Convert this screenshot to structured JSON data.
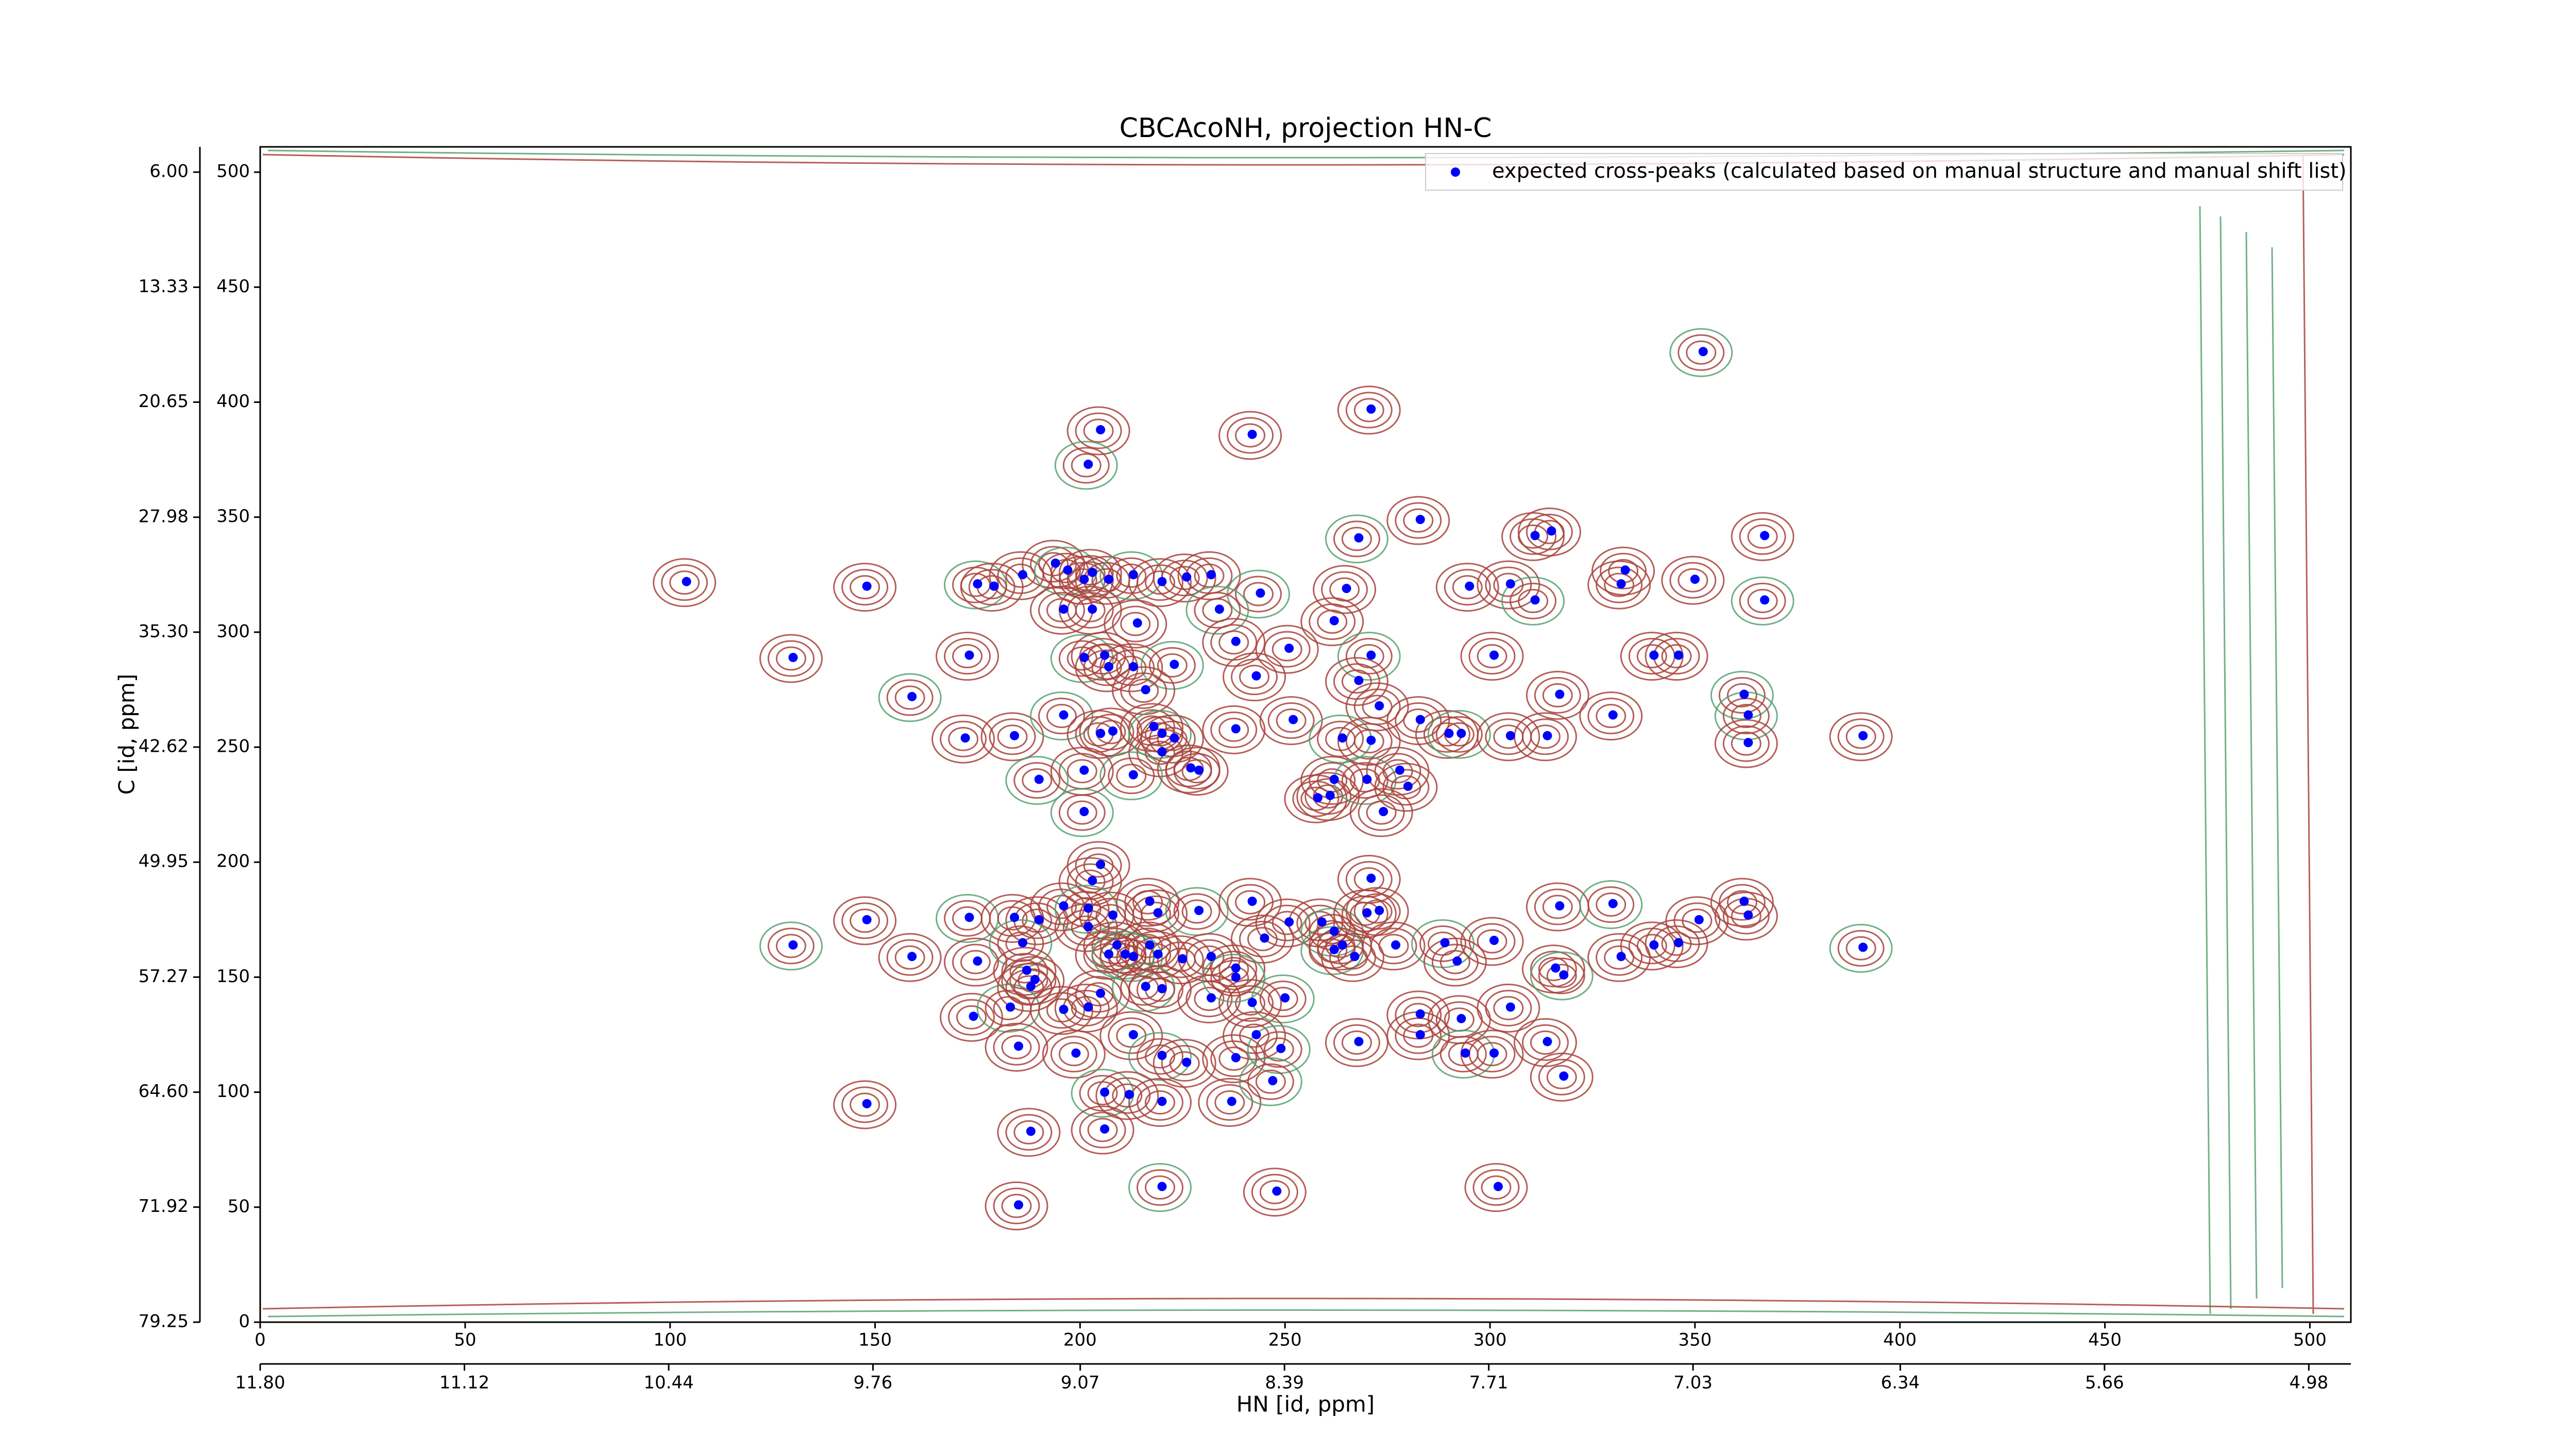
{
  "chart_data": {
    "type": "scatter",
    "title": "CBCAcoNH, projection HN-C",
    "xlabel": "HN [id, ppm]",
    "ylabel": "C [id, ppm]",
    "xlim": [
      0,
      510
    ],
    "ylim": [
      0,
      511
    ],
    "xticks": [
      0,
      50,
      100,
      150,
      200,
      250,
      300,
      350,
      400,
      450,
      500
    ],
    "yticks": [
      0,
      50,
      100,
      150,
      200,
      250,
      300,
      350,
      400,
      450,
      500
    ],
    "x2lim": [
      11.8,
      4.84
    ],
    "x2ticks": [
      {
        "value": 11.8,
        "label": "11.80"
      },
      {
        "value": 11.12,
        "label": "11.12"
      },
      {
        "value": 10.44,
        "label": "10.44"
      },
      {
        "value": 9.76,
        "label": "9.76"
      },
      {
        "value": 9.07,
        "label": "9.07"
      },
      {
        "value": 8.39,
        "label": "8.39"
      },
      {
        "value": 7.71,
        "label": "7.71"
      },
      {
        "value": 7.03,
        "label": "7.03"
      },
      {
        "value": 6.34,
        "label": "6.34"
      },
      {
        "value": 5.66,
        "label": "5.66"
      },
      {
        "value": 4.98,
        "label": "4.98"
      }
    ],
    "y2lim": [
      79.25,
      4.39
    ],
    "y2ticks": [
      {
        "value": 79.25,
        "label": "79.25"
      },
      {
        "value": 71.92,
        "label": "71.92"
      },
      {
        "value": 64.6,
        "label": "64.60"
      },
      {
        "value": 57.27,
        "label": "57.27"
      },
      {
        "value": 49.95,
        "label": "49.95"
      },
      {
        "value": 42.62,
        "label": "42.62"
      },
      {
        "value": 35.3,
        "label": "35.30"
      },
      {
        "value": 27.98,
        "label": "27.98"
      },
      {
        "value": 20.65,
        "label": "20.65"
      },
      {
        "value": 13.33,
        "label": "13.33"
      },
      {
        "value": 6.0,
        "label": "6.00"
      }
    ],
    "legend": "upper right",
    "series": [
      {
        "name": "expected cross-peaks (calculated based on manual structure and manual shift list)",
        "color": "#0000ff",
        "x": [
          352,
          271,
          205,
          242,
          202,
          283,
          315,
          311,
          268,
          367,
          104,
          148,
          175,
          179,
          186,
          194,
          197,
          201,
          203,
          207,
          213,
          220,
          226,
          232,
          244,
          265,
          295,
          305,
          311,
          333,
          332,
          350,
          367,
          196,
          203,
          214,
          234,
          262,
          130,
          173,
          201,
          206,
          207,
          213,
          223,
          238,
          251,
          243,
          271,
          301,
          340,
          346,
          159,
          268,
          273,
          317,
          362,
          216,
          172,
          184,
          196,
          205,
          208,
          218,
          220,
          223,
          238,
          252,
          264,
          271,
          283,
          290,
          293,
          305,
          314,
          330,
          363,
          363,
          391,
          220,
          213,
          227,
          229,
          201,
          190,
          262,
          258,
          261,
          270,
          278,
          280,
          274,
          201,
          205,
          203,
          271,
          173,
          184,
          190,
          196,
          202,
          208,
          217,
          219,
          229,
          242,
          251,
          259,
          262,
          270,
          273,
          317,
          330,
          351,
          362,
          363,
          130,
          159,
          148,
          175,
          186,
          202,
          207,
          209,
          213,
          219,
          225,
          217,
          211,
          232,
          238,
          245,
          262,
          264,
          267,
          277,
          289,
          292,
          301,
          316,
          318,
          332,
          340,
          346,
          391,
          174,
          187,
          189,
          183,
          196,
          202,
          205,
          216,
          220,
          232,
          242,
          250,
          283,
          305,
          188,
          238,
          185,
          199,
          213,
          220,
          226,
          243,
          238,
          249,
          268,
          283,
          293,
          294,
          301,
          314,
          318,
          206,
          212,
          220,
          237,
          247,
          148,
          188,
          206,
          220,
          248,
          302,
          185
        ],
        "y": [
          422,
          397,
          388,
          386,
          373,
          349,
          344,
          342,
          341,
          342,
          322,
          320,
          321,
          320,
          325,
          330,
          327,
          323,
          326,
          323,
          325,
          322,
          324,
          325,
          317,
          319,
          320,
          321,
          314,
          327,
          321,
          323,
          314,
          310,
          310,
          304,
          310,
          305,
          289,
          290,
          289,
          290,
          285,
          285,
          286,
          296,
          293,
          281,
          290,
          290,
          290,
          290,
          272,
          279,
          268,
          273,
          273,
          275,
          254,
          255,
          264,
          256,
          257,
          259,
          256,
          254,
          258,
          262,
          254,
          253,
          262,
          256,
          256,
          255,
          255,
          264,
          264,
          252,
          255,
          248,
          238,
          241,
          240,
          240,
          236,
          236,
          228,
          229,
          236,
          240,
          233,
          222,
          222,
          199,
          192,
          193,
          176,
          176,
          175,
          181,
          180,
          177,
          183,
          178,
          179,
          183,
          174,
          174,
          170,
          178,
          179,
          181,
          182,
          175,
          183,
          177,
          164,
          159,
          175,
          157,
          165,
          172,
          160,
          164,
          159,
          160,
          158,
          164,
          160,
          159,
          154,
          167,
          162,
          164,
          159,
          164,
          165,
          157,
          166,
          154,
          151,
          159,
          164,
          165,
          163,
          133,
          153,
          149,
          137,
          136,
          137,
          143,
          146,
          145,
          141,
          139,
          141,
          134,
          137,
          146,
          150,
          120,
          117,
          125,
          116,
          113,
          125,
          115,
          119,
          122,
          125,
          132,
          117,
          117,
          122,
          107,
          100,
          99,
          96,
          96,
          105,
          95,
          83,
          84,
          59,
          57,
          59,
          51
        ]
      }
    ]
  }
}
